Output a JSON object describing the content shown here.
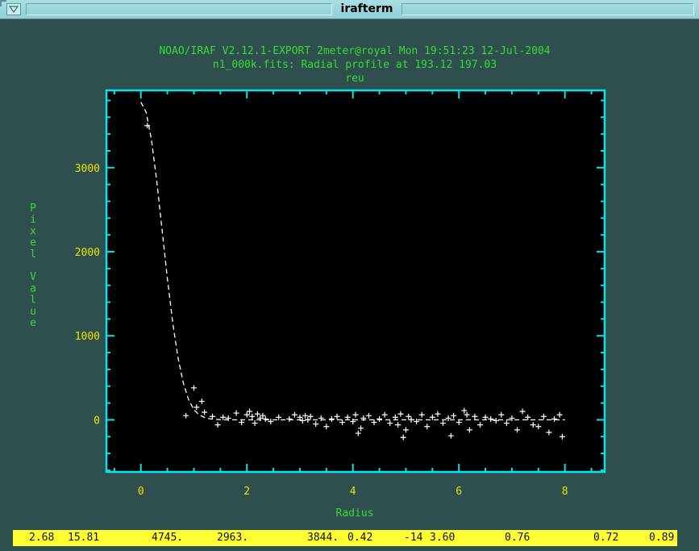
{
  "window": {
    "title": "irafterm"
  },
  "header": {
    "line1": "NOAO/IRAF V2.12.1-EXPORT 2meter@royal Mon 19:51:23 12-Jul-2004",
    "line2": "n1_000k.fits: Radial profile at 193.12 197.03",
    "line3": "reu"
  },
  "colors": {
    "background": "#2f4f4f",
    "plot_background": "#000000",
    "frame": "#00e5ee",
    "header_text": "#33dd33",
    "tick_labels": "#e6e600",
    "data": "#ffffff",
    "status_bar": "#ffff33"
  },
  "icons": {
    "menu": "down-triangle-icon"
  },
  "chart_data": {
    "type": "scatter",
    "title": "n1_000k.fits: Radial profile at 193.12 197.03",
    "subtitle": "reu",
    "xlabel": "Radius",
    "ylabel": "Pixel Value",
    "xlim": [
      -0.65,
      8.75
    ],
    "ylim": [
      -620,
      3920
    ],
    "x_ticks": [
      0,
      2,
      4,
      6,
      8
    ],
    "x_tick_labels": [
      "0",
      "2",
      "4",
      "6",
      "8"
    ],
    "y_ticks": [
      0,
      1000,
      2000,
      3000
    ],
    "y_tick_labels": [
      "0",
      "1000",
      "2000",
      "3000"
    ],
    "grid": false,
    "legend": "none",
    "series": [
      {
        "kind": "points",
        "marker": "+",
        "x": [
          0.12,
          0.85,
          1.0,
          1.05,
          1.15,
          1.2,
          1.35,
          1.45,
          1.55,
          1.65,
          1.8,
          1.9,
          2.0,
          2.05,
          2.1,
          2.15,
          2.2,
          2.25,
          2.3,
          2.35,
          2.45,
          2.6,
          2.8,
          2.9,
          3.0,
          3.05,
          3.1,
          3.15,
          3.2,
          3.3,
          3.4,
          3.5,
          3.6,
          3.7,
          3.8,
          3.9,
          4.0,
          4.05,
          4.1,
          4.15,
          4.2,
          4.3,
          4.4,
          4.5,
          4.6,
          4.7,
          4.8,
          4.85,
          4.9,
          4.95,
          5.0,
          5.05,
          5.1,
          5.2,
          5.3,
          5.4,
          5.5,
          5.6,
          5.7,
          5.8,
          5.85,
          5.9,
          6.0,
          6.1,
          6.15,
          6.2,
          6.3,
          6.4,
          6.5,
          6.6,
          6.7,
          6.8,
          6.9,
          7.0,
          7.1,
          7.2,
          7.3,
          7.4,
          7.5,
          7.6,
          7.7,
          7.8,
          7.9,
          7.95
        ],
        "y": [
          3500,
          50,
          380,
          150,
          220,
          90,
          40,
          -60,
          30,
          20,
          80,
          -30,
          60,
          100,
          40,
          -40,
          70,
          20,
          50,
          10,
          -20,
          30,
          10,
          60,
          30,
          -10,
          50,
          0,
          40,
          -50,
          20,
          -80,
          10,
          40,
          -30,
          30,
          -20,
          60,
          -160,
          -100,
          20,
          50,
          -30,
          10,
          60,
          -40,
          30,
          -60,
          70,
          -210,
          -120,
          40,
          0,
          -20,
          60,
          -80,
          30,
          70,
          -40,
          20,
          -190,
          50,
          -30,
          110,
          60,
          -120,
          40,
          -60,
          30,
          10,
          -10,
          60,
          -40,
          20,
          -120,
          100,
          30,
          -60,
          -80,
          40,
          -150,
          10,
          60,
          -200
        ]
      },
      {
        "kind": "fit",
        "line": "dashed",
        "x": [
          0.0,
          0.1,
          0.2,
          0.3,
          0.4,
          0.5,
          0.6,
          0.7,
          0.8,
          0.9,
          1.0,
          1.1,
          1.2,
          1.3,
          1.4,
          1.5,
          1.6,
          1.8,
          2.0,
          2.5,
          3.0,
          4.0,
          5.0,
          6.0,
          7.0,
          8.0
        ],
        "y": [
          3780,
          3660,
          3330,
          2840,
          2260,
          1680,
          1160,
          740,
          440,
          240,
          120,
          60,
          28,
          12,
          6,
          3,
          1,
          0,
          0,
          0,
          0,
          0,
          0,
          0,
          0,
          0
        ]
      }
    ]
  },
  "status_bar": {
    "values": [
      "2.68",
      "15.81",
      "4745.",
      "2963.",
      "3844.",
      "0.42",
      "-14",
      "3.60",
      "0.76",
      "0.72",
      "0.89"
    ]
  }
}
